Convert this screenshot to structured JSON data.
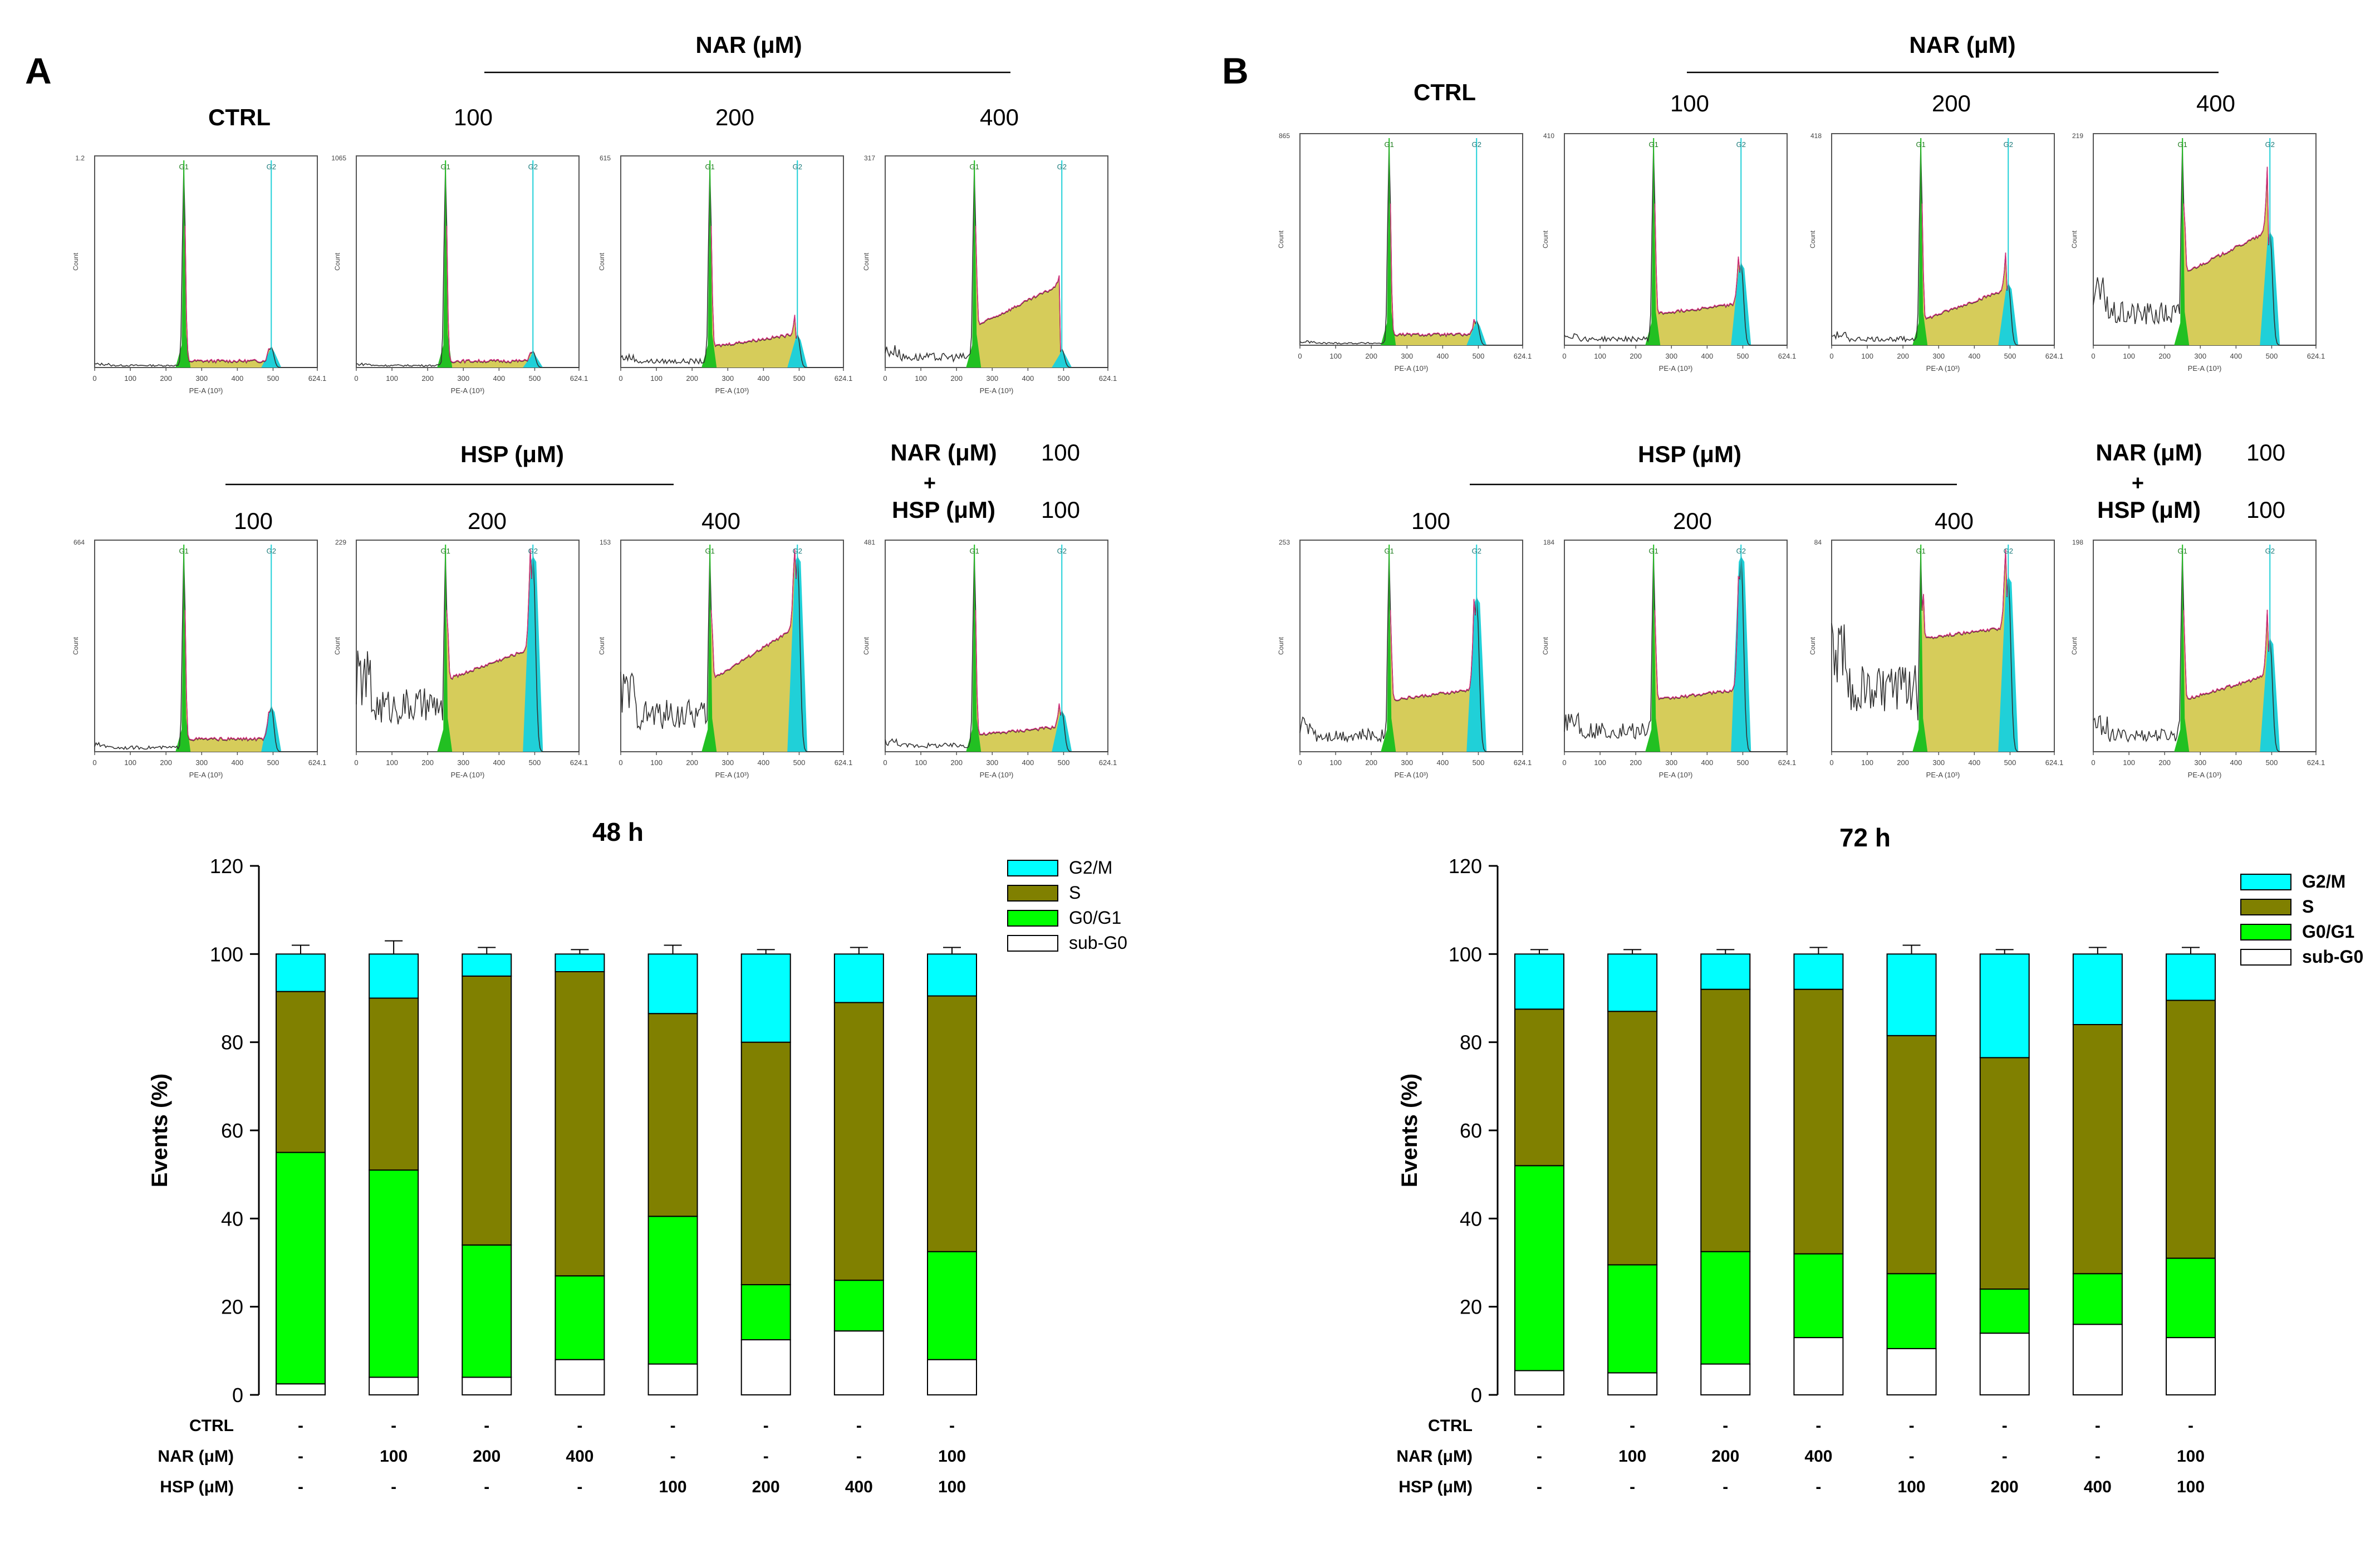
{
  "panels": [
    {
      "letter": "A",
      "nar_header": "NAR (μM)",
      "hsp_header": "HSP (μM)",
      "ctrl_label": "CTRL",
      "row1_labels": [
        "100",
        "200",
        "400"
      ],
      "row2_labels": [
        "100",
        "200",
        "400"
      ],
      "combo": {
        "nar": "NAR (μM)",
        "plus": "+",
        "hsp": "HSP (μM)",
        "nar_val": "100",
        "hsp_val": "100"
      }
    },
    {
      "letter": "B",
      "nar_header": "NAR (μM)",
      "hsp_header": "HSP (μM)",
      "ctrl_label": "CTRL",
      "row1_labels": [
        "100",
        "200",
        "400"
      ],
      "row2_labels": [
        "100",
        "200",
        "400"
      ],
      "combo": {
        "nar": "NAR (μM)",
        "plus": "+",
        "hsp": "HSP (μM)",
        "nar_val": "100",
        "hsp_val": "100"
      }
    }
  ],
  "histogram_template": {
    "g1_label": "G1",
    "g2_label": "G2",
    "xlabel": "PE-A (10³)",
    "ylabel": "Count",
    "xticks": [
      "0",
      "100",
      "200",
      "300",
      "400",
      "500",
      "624.1"
    ]
  },
  "histograms": {
    "A": [
      {
        "id": "A-CTRL",
        "ymax": "1.2",
        "s_level": 0.03,
        "g2_height": 0.1,
        "debris": 0.01,
        "s_rise": 0.0
      },
      {
        "id": "A-NAR100",
        "ymax": "1065",
        "s_level": 0.03,
        "g2_height": 0.08,
        "debris": 0.01,
        "s_rise": 0.0
      },
      {
        "id": "A-NAR200",
        "ymax": "615",
        "s_level": 0.1,
        "g2_height": 0.16,
        "debris": 0.03,
        "s_rise": 0.06
      },
      {
        "id": "A-NAR400",
        "ymax": "317",
        "s_level": 0.2,
        "g2_height": 0.09,
        "debris": 0.05,
        "s_rise": 0.2
      },
      {
        "id": "A-HSP100",
        "ymax": "664",
        "s_level": 0.06,
        "g2_height": 0.22,
        "debris": 0.02,
        "s_rise": 0.0
      },
      {
        "id": "A-HSP200",
        "ymax": "229",
        "s_level": 0.35,
        "g2_height": 0.95,
        "debris": 0.22,
        "s_rise": 0.15
      },
      {
        "id": "A-HSP400",
        "ymax": "153",
        "s_level": 0.35,
        "g2_height": 0.95,
        "debris": 0.18,
        "s_rise": 0.25
      },
      {
        "id": "A-COMBO",
        "ymax": "481",
        "s_level": 0.08,
        "g2_height": 0.2,
        "debris": 0.03,
        "s_rise": 0.04
      }
    ],
    "B": [
      {
        "id": "B-CTRL",
        "ymax": "865",
        "s_level": 0.05,
        "g2_height": 0.12,
        "debris": 0.01,
        "s_rise": 0.0
      },
      {
        "id": "B-NAR100",
        "ymax": "410",
        "s_level": 0.15,
        "g2_height": 0.4,
        "debris": 0.03,
        "s_rise": 0.05
      },
      {
        "id": "B-NAR200",
        "ymax": "418",
        "s_level": 0.12,
        "g2_height": 0.3,
        "debris": 0.03,
        "s_rise": 0.15
      },
      {
        "id": "B-NAR400",
        "ymax": "219",
        "s_level": 0.35,
        "g2_height": 0.55,
        "debris": 0.15,
        "s_rise": 0.2
      },
      {
        "id": "B-HSP100",
        "ymax": "253",
        "s_level": 0.25,
        "g2_height": 0.75,
        "debris": 0.08,
        "s_rise": 0.05
      },
      {
        "id": "B-HSP200",
        "ymax": "184",
        "s_level": 0.25,
        "g2_height": 0.95,
        "debris": 0.1,
        "s_rise": 0.05
      },
      {
        "id": "B-HSP400",
        "ymax": "84",
        "s_level": 0.55,
        "g2_height": 0.85,
        "debris": 0.3,
        "s_rise": 0.05
      },
      {
        "id": "B-COMBO",
        "ymax": "198",
        "s_level": 0.25,
        "g2_height": 0.55,
        "debris": 0.08,
        "s_rise": 0.12
      }
    ]
  },
  "chart_data": [
    {
      "type": "bar",
      "stacked": true,
      "title": "48 h",
      "xlabel": "",
      "ylabel": "Events (%)",
      "ylim": [
        0,
        120
      ],
      "yticks": [
        "0",
        "20",
        "40",
        "60",
        "80",
        "100",
        "120"
      ],
      "legend_position": "top-right",
      "row_labels": [
        "CTRL",
        "NAR (μM)",
        "HSP (μM)"
      ],
      "conditions": [
        {
          "ctrl": "-",
          "nar": "-",
          "hsp": "-"
        },
        {
          "ctrl": "-",
          "nar": "100",
          "hsp": "-"
        },
        {
          "ctrl": "-",
          "nar": "200",
          "hsp": "-"
        },
        {
          "ctrl": "-",
          "nar": "400",
          "hsp": "-"
        },
        {
          "ctrl": "-",
          "nar": "-",
          "hsp": "100"
        },
        {
          "ctrl": "-",
          "nar": "-",
          "hsp": "200"
        },
        {
          "ctrl": "-",
          "nar": "-",
          "hsp": "400"
        },
        {
          "ctrl": "-",
          "nar": "100",
          "hsp": "100"
        }
      ],
      "series": [
        {
          "name": "sub-G0",
          "color": "#ffffff",
          "values": [
            2.5,
            4,
            4,
            8,
            7,
            12.5,
            14.5,
            8
          ],
          "errors": [
            0.5,
            1,
            0.5,
            1,
            1.5,
            1,
            1.5,
            0.5
          ]
        },
        {
          "name": "G0/G1",
          "color": "#00ff00",
          "values": [
            52.5,
            47,
            30,
            19,
            33.5,
            12.5,
            11.5,
            24.5
          ],
          "errors": [
            0.5,
            0.5,
            2,
            1,
            1,
            2,
            1.5,
            0.5
          ]
        },
        {
          "name": "S",
          "color": "#808000",
          "values": [
            36.5,
            39,
            61,
            69,
            46,
            55,
            63,
            58
          ],
          "errors": [
            0.5,
            2,
            1,
            0.5,
            1,
            2,
            1.5,
            1.5
          ]
        },
        {
          "name": "G2/M",
          "color": "#00ffff",
          "values": [
            8.5,
            10,
            5,
            4,
            13.5,
            20,
            11,
            9.5
          ],
          "errors": [
            2,
            3,
            1.5,
            1,
            2,
            1,
            1.5,
            1.5
          ]
        }
      ]
    },
    {
      "type": "bar",
      "stacked": true,
      "title": "72 h",
      "xlabel": "",
      "ylabel": "Events (%)",
      "ylim": [
        0,
        120
      ],
      "yticks": [
        "0",
        "20",
        "40",
        "60",
        "80",
        "100",
        "120"
      ],
      "legend_position": "top-right",
      "row_labels": [
        "CTRL",
        "NAR (μM)",
        "HSP (μM)"
      ],
      "conditions": [
        {
          "ctrl": "-",
          "nar": "-",
          "hsp": "-"
        },
        {
          "ctrl": "-",
          "nar": "100",
          "hsp": "-"
        },
        {
          "ctrl": "-",
          "nar": "200",
          "hsp": "-"
        },
        {
          "ctrl": "-",
          "nar": "400",
          "hsp": "-"
        },
        {
          "ctrl": "-",
          "nar": "-",
          "hsp": "100"
        },
        {
          "ctrl": "-",
          "nar": "-",
          "hsp": "200"
        },
        {
          "ctrl": "-",
          "nar": "-",
          "hsp": "400"
        },
        {
          "ctrl": "-",
          "nar": "100",
          "hsp": "100"
        }
      ],
      "series": [
        {
          "name": "sub-G0",
          "color": "#ffffff",
          "values": [
            5.5,
            5,
            7,
            13,
            10.5,
            14,
            16,
            13
          ],
          "errors": [
            0.5,
            0.5,
            0.5,
            1,
            1.5,
            1,
            1,
            0.5
          ]
        },
        {
          "name": "G0/G1",
          "color": "#00ff00",
          "values": [
            46.5,
            24.5,
            25.5,
            19,
            17,
            10,
            11.5,
            18
          ],
          "errors": [
            0.5,
            0.5,
            2,
            1,
            1,
            2,
            1,
            0.5
          ]
        },
        {
          "name": "S",
          "color": "#808000",
          "values": [
            35.5,
            57.5,
            59.5,
            60,
            54,
            52.5,
            56.5,
            58.5
          ],
          "errors": [
            0.5,
            2,
            1.5,
            0.5,
            0.5,
            2,
            1,
            1
          ]
        },
        {
          "name": "G2/M",
          "color": "#00ffff",
          "values": [
            12.5,
            13,
            8,
            8,
            18.5,
            23.5,
            16,
            10.5
          ],
          "errors": [
            1,
            1,
            1,
            1.5,
            2,
            1,
            1.5,
            1.5
          ]
        }
      ]
    }
  ]
}
